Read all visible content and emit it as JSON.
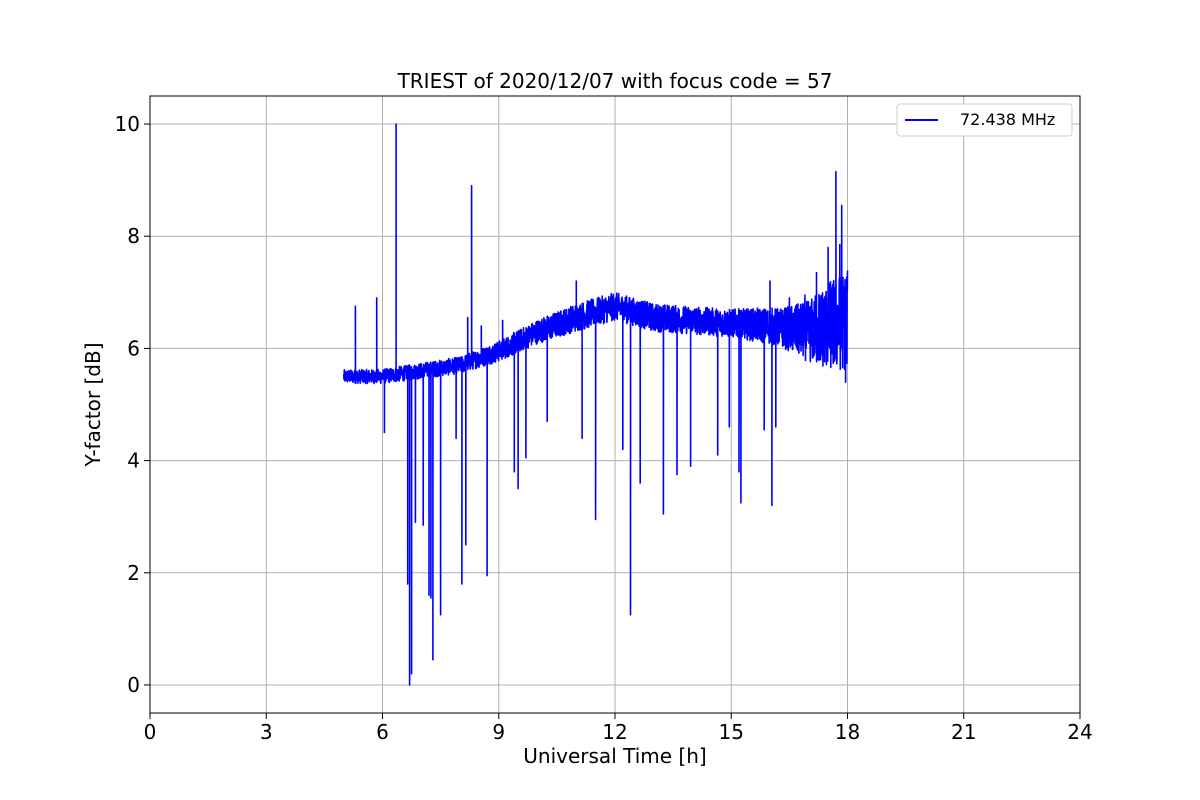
{
  "chart_data": {
    "type": "line",
    "title": "TRIEST of 2020/12/07 with focus code = 57",
    "xlabel": "Universal Time [h]",
    "ylabel": "Y-factor [dB]",
    "xlim": [
      0,
      24
    ],
    "ylim": [
      -0.5,
      10.5
    ],
    "xticks": [
      0,
      3,
      6,
      9,
      12,
      15,
      18,
      21,
      24
    ],
    "yticks": [
      0,
      2,
      4,
      6,
      8,
      10
    ],
    "grid": true,
    "legend_position": "top-right",
    "series": [
      {
        "name": "72.438 MHz",
        "color": "#0000ff",
        "x_range": [
          5.0,
          18.0
        ],
        "baseline": [
          [
            5.0,
            5.5
          ],
          [
            6.0,
            5.5
          ],
          [
            7.0,
            5.6
          ],
          [
            8.0,
            5.7
          ],
          [
            9.0,
            5.95
          ],
          [
            10.0,
            6.3
          ],
          [
            11.0,
            6.55
          ],
          [
            12.0,
            6.75
          ],
          [
            13.0,
            6.55
          ],
          [
            14.0,
            6.5
          ],
          [
            15.0,
            6.45
          ],
          [
            16.0,
            6.4
          ],
          [
            16.5,
            6.35
          ],
          [
            17.0,
            6.3
          ],
          [
            17.5,
            6.4
          ],
          [
            18.0,
            6.5
          ]
        ],
        "noise_envelope": [
          [
            5.0,
            0.12
          ],
          [
            8.0,
            0.15
          ],
          [
            11.0,
            0.25
          ],
          [
            15.0,
            0.25
          ],
          [
            16.3,
            0.35
          ],
          [
            17.0,
            0.55
          ],
          [
            17.5,
            0.8
          ],
          [
            18.0,
            0.9
          ]
        ],
        "spikes": [
          [
            5.3,
            6.75
          ],
          [
            5.85,
            6.9
          ],
          [
            6.05,
            4.5
          ],
          [
            6.35,
            10.0
          ],
          [
            6.65,
            1.8
          ],
          [
            6.7,
            0.0
          ],
          [
            6.75,
            0.2
          ],
          [
            6.85,
            2.9
          ],
          [
            7.05,
            2.85
          ],
          [
            7.2,
            1.6
          ],
          [
            7.25,
            1.55
          ],
          [
            7.3,
            0.45
          ],
          [
            7.5,
            1.25
          ],
          [
            7.9,
            4.4
          ],
          [
            8.05,
            1.8
          ],
          [
            8.15,
            2.5
          ],
          [
            8.2,
            6.55
          ],
          [
            8.3,
            8.9
          ],
          [
            8.55,
            6.4
          ],
          [
            8.7,
            1.95
          ],
          [
            9.1,
            6.5
          ],
          [
            9.4,
            3.8
          ],
          [
            9.5,
            3.5
          ],
          [
            9.7,
            4.05
          ],
          [
            10.25,
            4.7
          ],
          [
            11.0,
            7.2
          ],
          [
            11.15,
            4.4
          ],
          [
            11.5,
            2.95
          ],
          [
            11.75,
            6.8
          ],
          [
            12.2,
            4.2
          ],
          [
            12.4,
            1.25
          ],
          [
            12.65,
            3.6
          ],
          [
            12.85,
            6.8
          ],
          [
            13.25,
            3.05
          ],
          [
            13.6,
            3.75
          ],
          [
            13.95,
            3.9
          ],
          [
            14.3,
            6.6
          ],
          [
            14.65,
            4.1
          ],
          [
            14.95,
            4.6
          ],
          [
            15.1,
            6.7
          ],
          [
            15.2,
            3.8
          ],
          [
            15.25,
            3.25
          ],
          [
            15.85,
            4.55
          ],
          [
            16.0,
            7.2
          ],
          [
            16.05,
            3.2
          ],
          [
            16.15,
            4.6
          ],
          [
            16.5,
            6.9
          ],
          [
            16.9,
            6.95
          ],
          [
            17.2,
            7.35
          ],
          [
            17.5,
            7.8
          ],
          [
            17.7,
            9.15
          ],
          [
            17.8,
            7.85
          ],
          [
            17.85,
            8.55
          ],
          [
            17.95,
            5.4
          ]
        ]
      }
    ]
  }
}
